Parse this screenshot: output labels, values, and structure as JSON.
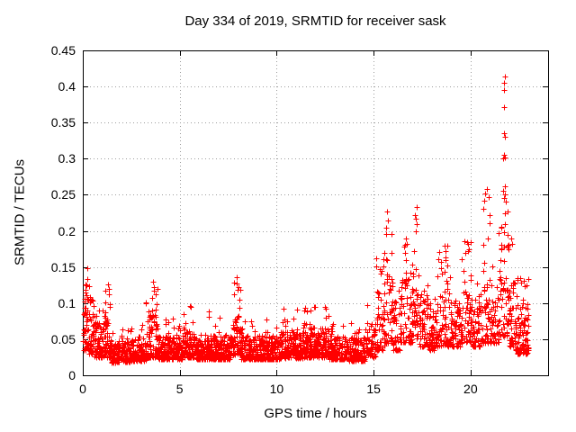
{
  "chart_data": {
    "type": "scatter",
    "title": "Day 334 of 2019, SRMTID for receiver sask",
    "xlabel": "GPS time / hours",
    "ylabel": "SRMTID / TECUs",
    "xlim": [
      0,
      24
    ],
    "ylim": [
      0,
      0.45
    ],
    "xticks": [
      0,
      5,
      10,
      15,
      20
    ],
    "xtick_labels": [
      "0",
      "5",
      "10",
      "15",
      "20"
    ],
    "yticks": [
      0,
      0.05,
      0.1,
      0.15,
      0.2,
      0.25,
      0.3,
      0.35,
      0.4,
      0.45
    ],
    "ytick_labels": [
      "0",
      "0.05",
      "0.1",
      "0.15",
      "0.2",
      "0.25",
      "0.3",
      "0.35",
      "0.4",
      "0.45"
    ],
    "grid": true,
    "legend": "none",
    "marker": {
      "symbol": "plus",
      "color": "#ff0000",
      "size": 7
    },
    "grid_color": "#9e9e9e",
    "axis_color": "#000000",
    "background": "#ffffff",
    "description": "Dense scatter of SRMTID values every ~30 s; quiet band ~0.02-0.06 TECUs from 1-15 h, elevated activity 0.05-0.25 after 15 h, major spike to 0.414 near 21.7 h, data ends ~23 h",
    "seed": 1334,
    "density_profile": [
      [
        0.0,
        0.3,
        150,
        0.035,
        0.115,
        0.148,
        0.1
      ],
      [
        0.3,
        0.6,
        150,
        0.03,
        0.105,
        0.13,
        0.08
      ],
      [
        0.6,
        0.9,
        140,
        0.025,
        0.07,
        0.1,
        0.06
      ],
      [
        0.9,
        1.45,
        140,
        0.025,
        0.095,
        0.128,
        0.07
      ],
      [
        1.45,
        2.4,
        150,
        0.018,
        0.048,
        0.07,
        0.05
      ],
      [
        2.4,
        3.25,
        150,
        0.02,
        0.05,
        0.075,
        0.05
      ],
      [
        3.25,
        3.9,
        140,
        0.025,
        0.085,
        0.132,
        0.1
      ],
      [
        3.9,
        5.15,
        150,
        0.022,
        0.055,
        0.08,
        0.05
      ],
      [
        5.15,
        5.8,
        140,
        0.025,
        0.06,
        0.097,
        0.07
      ],
      [
        5.8,
        7.7,
        150,
        0.022,
        0.055,
        0.085,
        0.05
      ],
      [
        7.7,
        8.15,
        140,
        0.028,
        0.08,
        0.136,
        0.1
      ],
      [
        8.15,
        10.2,
        150,
        0.022,
        0.055,
        0.082,
        0.05
      ],
      [
        10.2,
        11.4,
        150,
        0.024,
        0.06,
        0.092,
        0.06
      ],
      [
        11.4,
        12.7,
        150,
        0.025,
        0.065,
        0.096,
        0.07
      ],
      [
        12.7,
        13.6,
        150,
        0.022,
        0.055,
        0.08,
        0.05
      ],
      [
        13.6,
        14.6,
        130,
        0.02,
        0.052,
        0.075,
        0.05
      ],
      [
        14.6,
        15.1,
        110,
        0.025,
        0.065,
        0.1,
        0.07
      ],
      [
        15.1,
        15.55,
        110,
        0.035,
        0.11,
        0.17,
        0.12
      ],
      [
        15.55,
        15.95,
        110,
        0.045,
        0.14,
        0.22,
        0.12
      ],
      [
        15.95,
        16.4,
        110,
        0.035,
        0.105,
        0.155,
        0.1
      ],
      [
        16.4,
        17.0,
        110,
        0.045,
        0.13,
        0.195,
        0.12
      ],
      [
        17.0,
        17.35,
        110,
        0.05,
        0.145,
        0.225,
        0.12
      ],
      [
        17.35,
        17.8,
        110,
        0.04,
        0.115,
        0.16,
        0.1
      ],
      [
        17.8,
        18.3,
        110,
        0.035,
        0.095,
        0.14,
        0.08
      ],
      [
        18.3,
        18.9,
        110,
        0.04,
        0.12,
        0.18,
        0.1
      ],
      [
        18.9,
        19.5,
        110,
        0.04,
        0.105,
        0.15,
        0.08
      ],
      [
        19.5,
        20.05,
        110,
        0.045,
        0.125,
        0.19,
        0.12
      ],
      [
        20.05,
        20.55,
        110,
        0.04,
        0.105,
        0.15,
        0.08
      ],
      [
        20.55,
        21.1,
        110,
        0.045,
        0.135,
        0.24,
        0.1
      ],
      [
        21.1,
        21.45,
        100,
        0.045,
        0.115,
        0.16,
        0.08
      ],
      [
        21.45,
        21.95,
        120,
        0.055,
        0.18,
        0.26,
        0.15
      ],
      [
        21.95,
        22.3,
        120,
        0.04,
        0.125,
        0.17,
        0.1
      ],
      [
        22.3,
        23.0,
        150,
        0.03,
        0.105,
        0.135,
        0.07
      ]
    ],
    "peak_points": [
      [
        0.25,
        0.148
      ],
      [
        1.3,
        0.126
      ],
      [
        3.6,
        0.13
      ],
      [
        3.65,
        0.122
      ],
      [
        7.93,
        0.127
      ],
      [
        7.95,
        0.136
      ],
      [
        7.98,
        0.118
      ],
      [
        5.55,
        0.095
      ],
      [
        6.5,
        0.088
      ],
      [
        10.35,
        0.092
      ],
      [
        11.75,
        0.09
      ],
      [
        12.5,
        0.095
      ],
      [
        15.63,
        0.205
      ],
      [
        15.68,
        0.227
      ],
      [
        15.72,
        0.215
      ],
      [
        15.66,
        0.196
      ],
      [
        16.55,
        0.178
      ],
      [
        16.62,
        0.17
      ],
      [
        17.15,
        0.222
      ],
      [
        17.2,
        0.233
      ],
      [
        17.24,
        0.21
      ],
      [
        17.18,
        0.2
      ],
      [
        18.65,
        0.18
      ],
      [
        18.7,
        0.172
      ],
      [
        18.72,
        0.163
      ],
      [
        19.8,
        0.185
      ],
      [
        19.87,
        0.182
      ],
      [
        19.92,
        0.175
      ],
      [
        20.65,
        0.23
      ],
      [
        20.7,
        0.242
      ],
      [
        20.76,
        0.252
      ],
      [
        20.85,
        0.258
      ],
      [
        20.92,
        0.247
      ],
      [
        21.7,
        0.3
      ],
      [
        21.71,
        0.306
      ],
      [
        21.72,
        0.335
      ],
      [
        21.73,
        0.372
      ],
      [
        21.74,
        0.395
      ],
      [
        21.74,
        0.405
      ],
      [
        21.75,
        0.414
      ],
      [
        21.76,
        0.33
      ],
      [
        21.77,
        0.302
      ],
      [
        21.78,
        0.262
      ],
      [
        21.69,
        0.255
      ],
      [
        21.72,
        0.246
      ],
      [
        21.8,
        0.24
      ],
      [
        21.79,
        0.225
      ],
      [
        21.76,
        0.21
      ],
      [
        21.73,
        0.198
      ],
      [
        22.1,
        0.19
      ],
      [
        22.16,
        0.182
      ],
      [
        22.75,
        0.131
      ],
      [
        22.9,
        0.125
      ]
    ]
  }
}
